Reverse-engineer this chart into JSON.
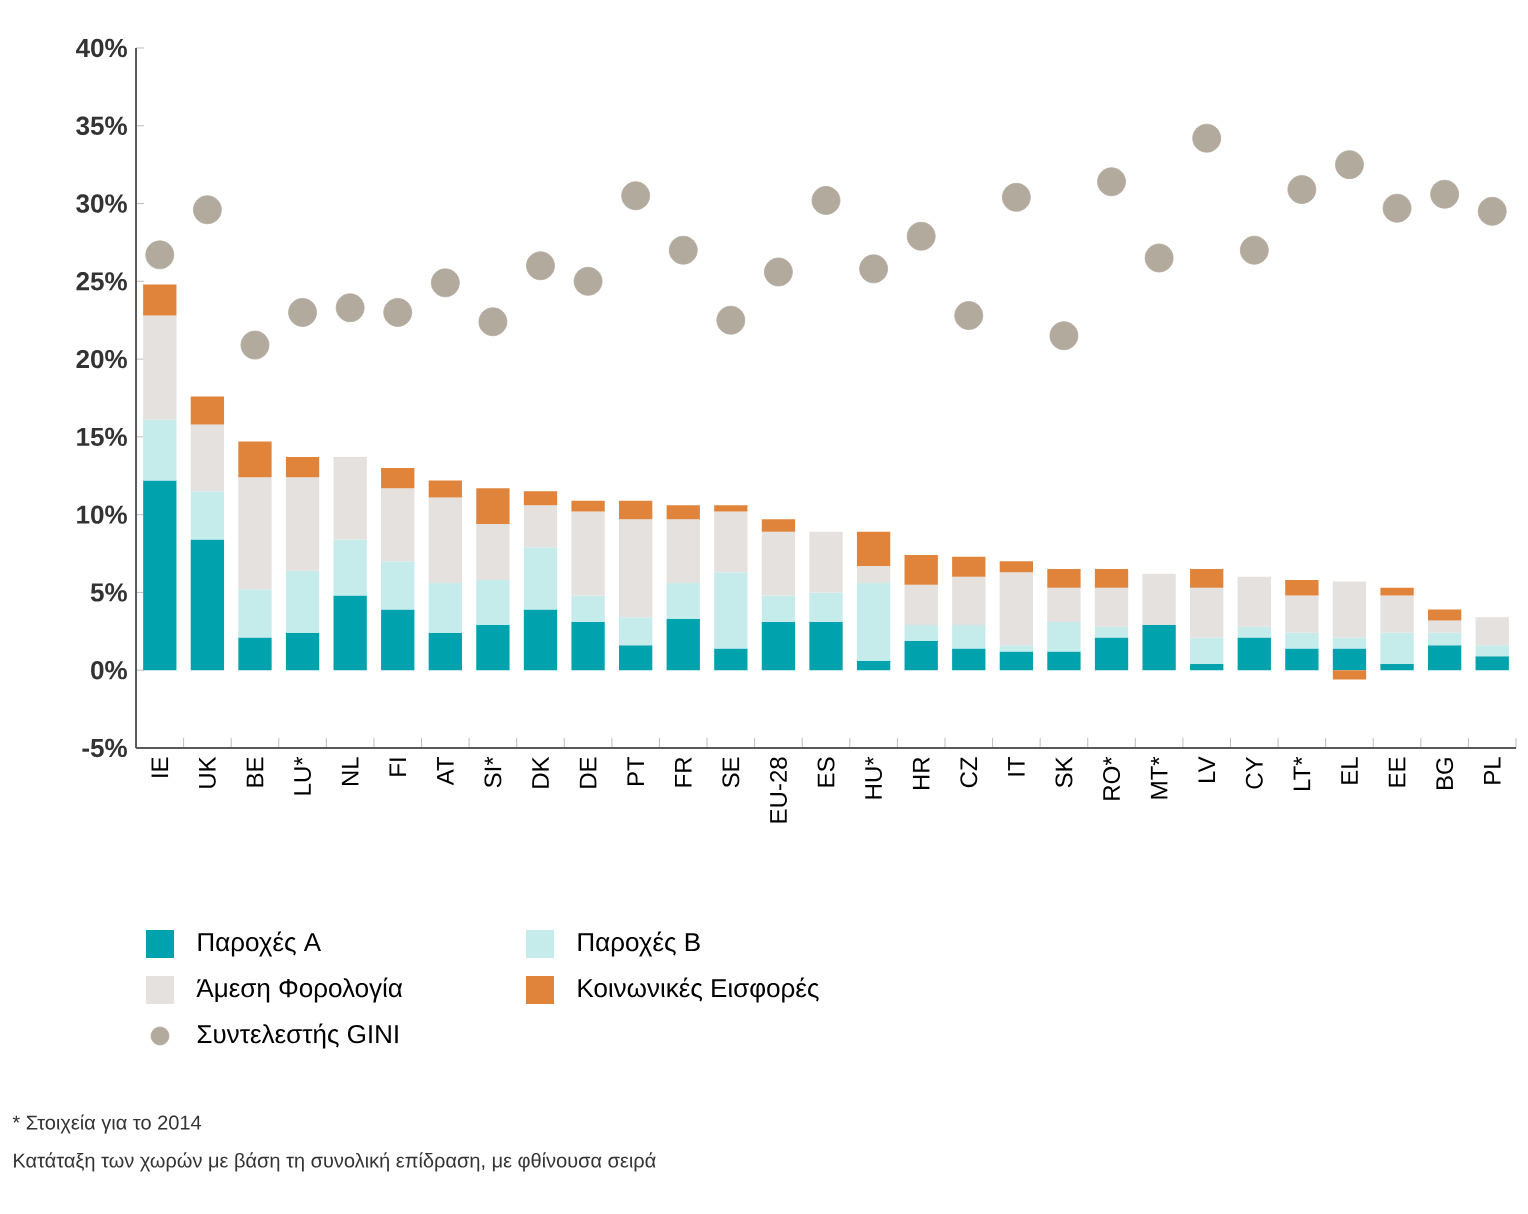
{
  "chart_data": {
    "type": "bar",
    "stacked": true,
    "legend": "bottom",
    "categories": [
      "IE",
      "UK",
      "BE",
      "LU*",
      "NL",
      "FI",
      "AT",
      "SI*",
      "DK",
      "DE",
      "PT",
      "FR",
      "SE",
      "EU-28",
      "ES",
      "HU*",
      "HR",
      "CZ",
      "IT",
      "SK",
      "RO*",
      "MT*",
      "LV",
      "CY",
      "LT*",
      "EL",
      "EE",
      "BG",
      "PL"
    ],
    "series": [
      {
        "name": "Παροχές Α",
        "color": "#00a3ad",
        "values": [
          12.2,
          8.4,
          2.1,
          2.4,
          4.8,
          3.9,
          2.4,
          2.9,
          3.9,
          3.1,
          1.6,
          3.3,
          1.4,
          3.1,
          3.1,
          0.6,
          1.9,
          1.4,
          1.2,
          1.2,
          2.1,
          2.9,
          0.4,
          2.1,
          1.4,
          1.4,
          0.4,
          1.6,
          0.9
        ]
      },
      {
        "name": "Παροχές Β",
        "color": "#c5ebeb",
        "values": [
          3.9,
          3.1,
          3.1,
          4.0,
          3.6,
          3.1,
          3.2,
          2.9,
          4.0,
          1.7,
          1.8,
          2.3,
          4.9,
          1.7,
          1.9,
          5.0,
          1.0,
          1.5,
          0.4,
          1.9,
          0.7,
          0.0,
          1.7,
          0.7,
          1.0,
          0.7,
          2.0,
          0.8,
          0.7
        ]
      },
      {
        "name": "Άμεση Φορολογία",
        "color": "#e5e1de",
        "values": [
          6.7,
          4.3,
          7.2,
          6.0,
          5.3,
          4.7,
          5.5,
          3.6,
          2.7,
          5.4,
          6.3,
          4.1,
          3.9,
          4.1,
          3.9,
          1.1,
          2.6,
          3.1,
          4.7,
          2.2,
          2.5,
          3.3,
          3.2,
          3.2,
          2.4,
          3.6,
          2.4,
          0.8,
          1.8
        ]
      },
      {
        "name": "Κοινωνικές Εισφορές",
        "color": "#e0843c",
        "values": [
          2.0,
          1.8,
          2.3,
          1.3,
          0.0,
          1.3,
          1.1,
          2.3,
          0.9,
          0.7,
          1.2,
          0.9,
          0.4,
          0.8,
          0.0,
          2.2,
          1.9,
          1.3,
          0.7,
          1.2,
          1.2,
          0.0,
          1.2,
          0.0,
          1.0,
          -0.6,
          0.5,
          0.7,
          0.0
        ]
      },
      {
        "name": "Συντελεστής GINI",
        "type": "scatter",
        "marker": "circle",
        "color": "#b3aa9e",
        "values": [
          26.7,
          29.6,
          20.9,
          23.0,
          23.3,
          23.0,
          24.9,
          22.4,
          26.0,
          25.0,
          30.5,
          27.0,
          22.5,
          25.6,
          30.2,
          25.8,
          27.9,
          22.8,
          30.4,
          21.5,
          31.4,
          26.5,
          34.2,
          27.0,
          30.9,
          32.5,
          29.7,
          30.6,
          29.5
        ]
      }
    ],
    "ylim": [
      -5,
      40
    ],
    "yticks": [
      {
        "value": -5,
        "label": "-5%"
      },
      {
        "value": 0,
        "label": "0%"
      },
      {
        "value": 5,
        "label": "5%"
      },
      {
        "value": 10,
        "label": "10%"
      },
      {
        "value": 15,
        "label": "15%"
      },
      {
        "value": 20,
        "label": "20%"
      },
      {
        "value": 25,
        "label": "25%"
      },
      {
        "value": 30,
        "label": "30%"
      },
      {
        "value": 35,
        "label": "35%"
      },
      {
        "value": 40,
        "label": "40%"
      }
    ],
    "annotations": [
      "* Στοιχεία για το 2014",
      "Κατάταξη των χωρών με βάση τη συνολική επίδραση, με φθίνουσα σειρά"
    ]
  }
}
